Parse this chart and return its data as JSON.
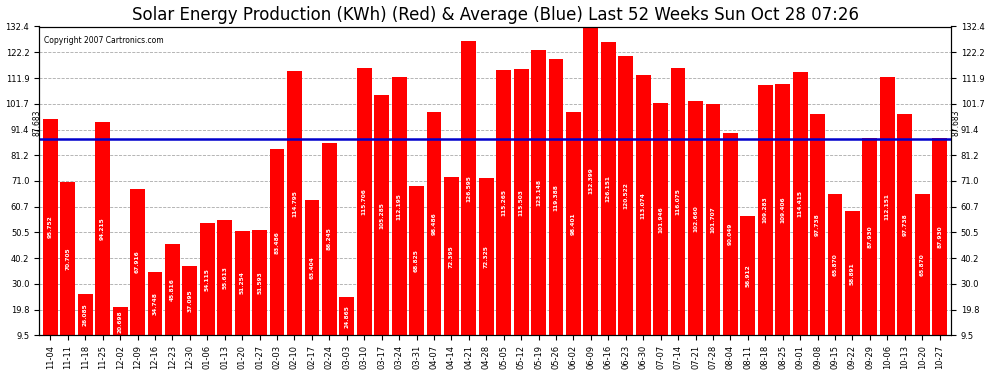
{
  "title": "Solar Energy Production (KWh) (Red) & Average (Blue) Last 52 Weeks Sun Oct 28 07:26",
  "copyright": "Copyright 2007 Cartronics.com",
  "average": 87.683,
  "bar_color": "#ff0000",
  "avg_line_color": "#0000cc",
  "background_color": "#ffffff",
  "grid_color": "#aaaaaa",
  "ylim_min": 9.5,
  "ylim_max": 132.4,
  "yticks": [
    9.5,
    19.8,
    30.0,
    40.2,
    50.5,
    60.7,
    71.0,
    81.2,
    91.4,
    101.7,
    111.9,
    122.2,
    132.4
  ],
  "categories": [
    "11-04",
    "11-11",
    "11-18",
    "11-25",
    "12-02",
    "12-09",
    "12-16",
    "12-23",
    "12-30",
    "01-06",
    "01-13",
    "01-20",
    "01-27",
    "02-03",
    "02-10",
    "02-17",
    "02-24",
    "03-03",
    "03-10",
    "03-17",
    "03-24",
    "03-31",
    "04-07",
    "04-14",
    "04-21",
    "04-28",
    "05-05",
    "05-12",
    "05-19",
    "05-26",
    "06-02",
    "06-09",
    "06-16",
    "06-23",
    "06-30",
    "07-07",
    "07-14",
    "07-21",
    "07-28",
    "08-04",
    "08-11",
    "08-18",
    "08-25",
    "09-01",
    "09-08",
    "09-15",
    "09-22",
    "09-29",
    "10-06",
    "10-13",
    "10-20",
    "10-27"
  ],
  "values": [
    95.752,
    70.705,
    26.085,
    94.215,
    20.698,
    67.916,
    34.748,
    45.816,
    37.095,
    54.115,
    55.613,
    51.254,
    51.593,
    83.486,
    114.795,
    63.404,
    86.245,
    24.865,
    115.706,
    105.285,
    112.195,
    68.825,
    98.486,
    72.395,
    126.595,
    72.325,
    115.265,
    115.503,
    123.148,
    119.388,
    98.401,
    132.399,
    126.151,
    120.522,
    113.074,
    101.946,
    116.075,
    102.66,
    101.707,
    90.049,
    56.912,
    109.283,
    109.406,
    114.415,
    97.738,
    65.87,
    58.891,
    87.93,
    112.151,
    97.738,
    65.87,
    87.93
  ],
  "title_fontsize": 12,
  "tick_fontsize": 6,
  "copyright_fontsize": 5.5
}
